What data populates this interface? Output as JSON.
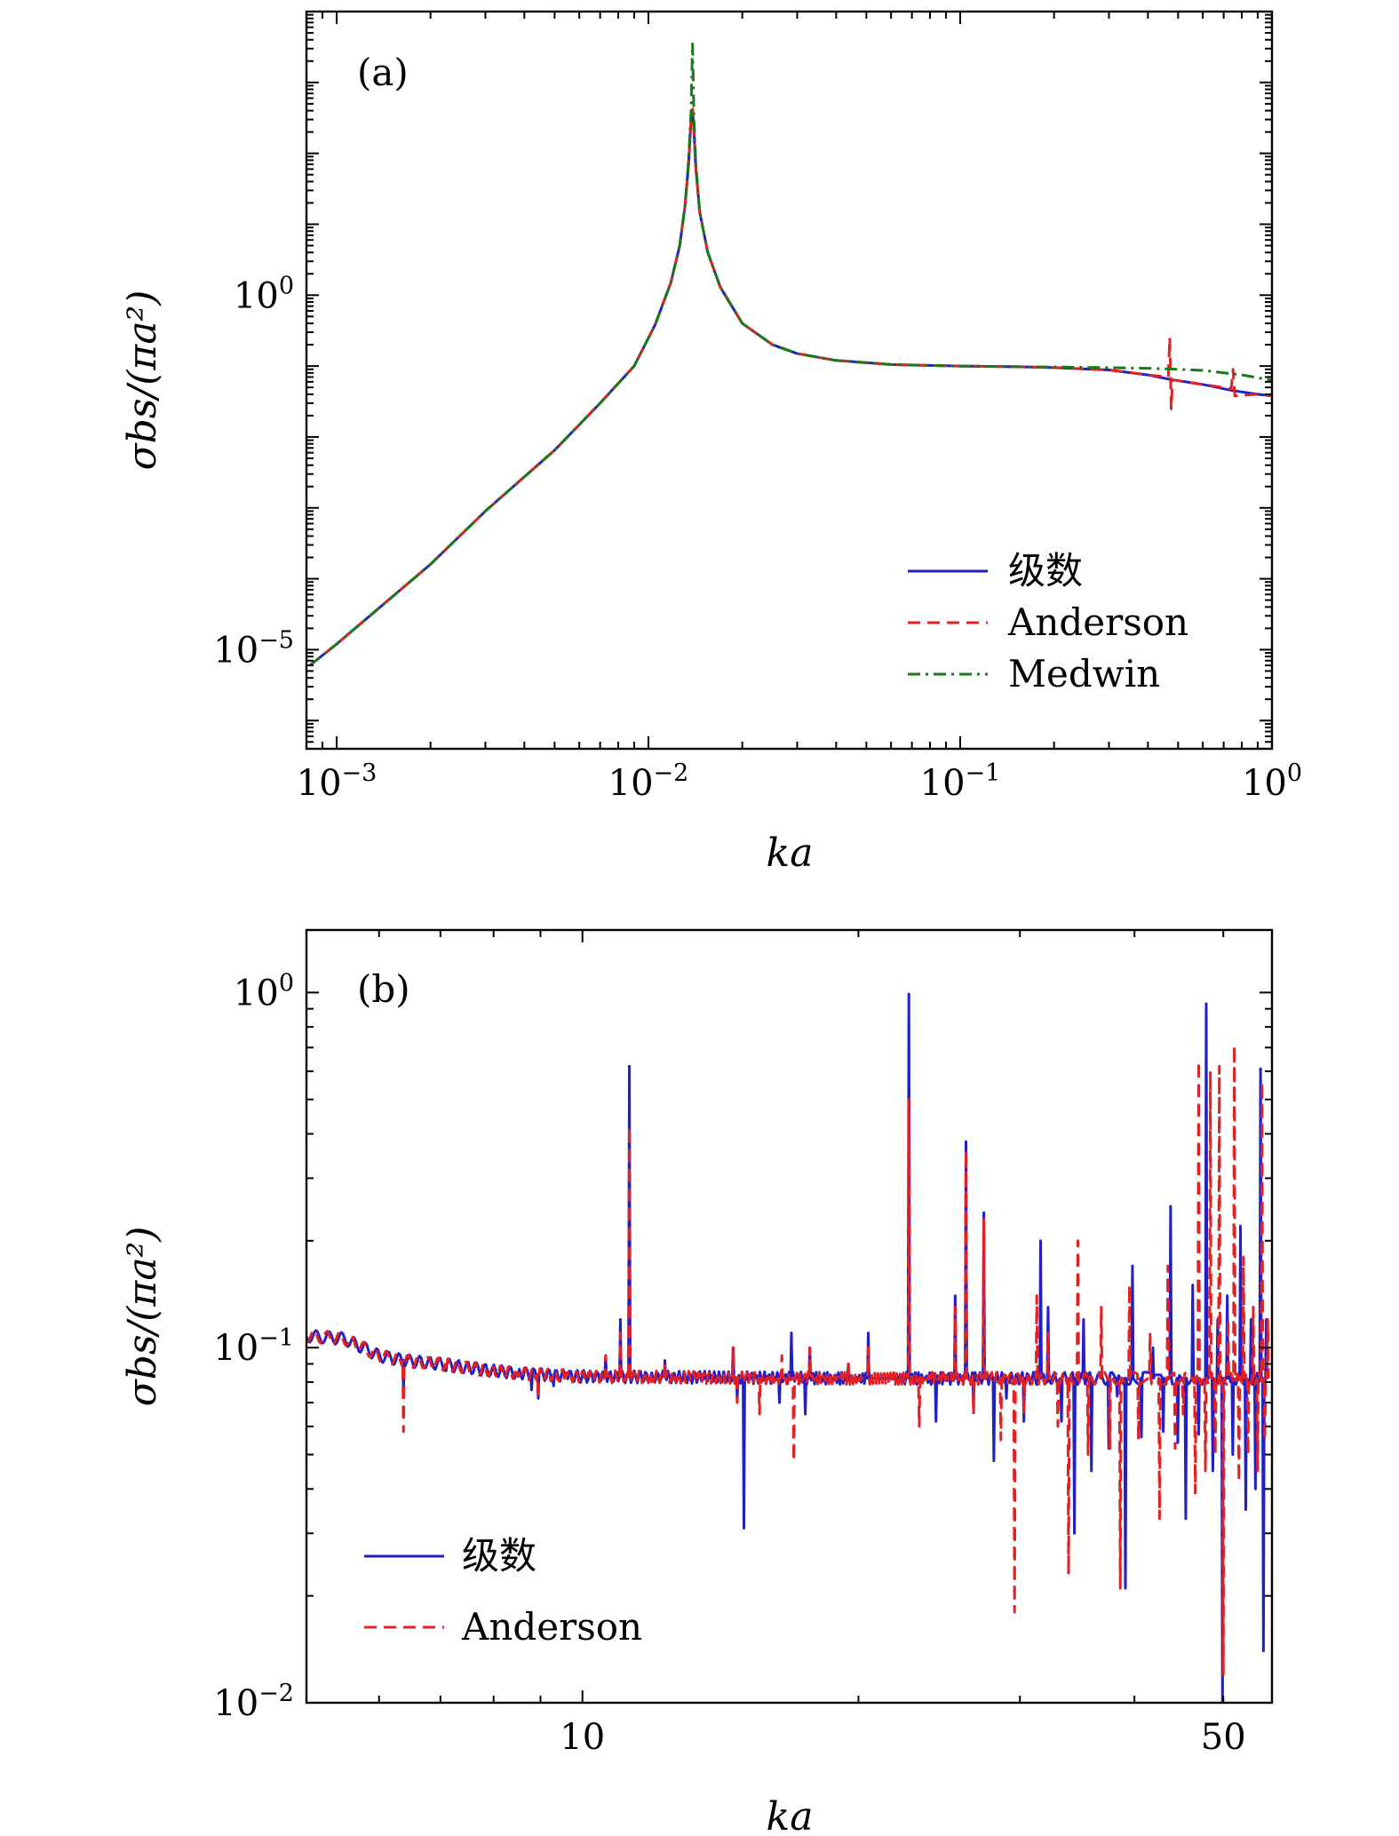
{
  "figure": {
    "background": "#ffffff"
  },
  "chart_data": [
    {
      "id": "a",
      "type": "line",
      "panel_label": "(a)",
      "xscale": "log",
      "yscale": "log",
      "xlim": [
        0.0008,
        1.0
      ],
      "ylim": [
        4e-07,
        10000
      ],
      "xlabel": "ka",
      "ylabel": "σbs/(πa²)",
      "xticks": [
        {
          "value": 0.001,
          "base": "10",
          "exp": "−3"
        },
        {
          "value": 0.01,
          "base": "10",
          "exp": "−2"
        },
        {
          "value": 0.1,
          "base": "10",
          "exp": "−1"
        },
        {
          "value": 1,
          "base": "10",
          "exp": "0"
        }
      ],
      "yticks": [
        {
          "value": 1e-05,
          "base": "10",
          "exp": "−5"
        },
        {
          "value": 1,
          "base": "10",
          "exp": "0"
        }
      ],
      "legend_position": "bottom-right",
      "series": [
        {
          "name": "级数",
          "color": "#1f1fcc",
          "style": "solid",
          "x": [
            0.00082,
            0.001,
            0.002,
            0.003,
            0.005,
            0.007,
            0.009,
            0.0105,
            0.0118,
            0.0126,
            0.0131,
            0.01345,
            0.0137,
            0.01385,
            0.014,
            0.0142,
            0.0146,
            0.0155,
            0.017,
            0.02,
            0.025,
            0.03,
            0.04,
            0.06,
            0.1,
            0.15,
            0.2,
            0.3,
            0.4,
            0.47,
            0.6,
            0.75,
            0.9,
            1.0
          ],
          "y": [
            6e-06,
            1.2e-05,
            0.00016,
            0.0009,
            0.0065,
            0.03,
            0.1,
            0.38,
            1.5,
            5,
            18,
            70,
            300,
            420,
            200,
            60,
            15,
            4,
            1.3,
            0.4,
            0.2,
            0.15,
            0.12,
            0.105,
            0.1,
            0.098,
            0.095,
            0.088,
            0.075,
            0.065,
            0.055,
            0.045,
            0.04,
            0.038
          ]
        },
        {
          "name": "Anderson",
          "color": "#e62020",
          "style": "dashed",
          "x": [
            0.00082,
            0.001,
            0.002,
            0.003,
            0.005,
            0.007,
            0.009,
            0.0105,
            0.0118,
            0.0126,
            0.0131,
            0.01345,
            0.0137,
            0.01385,
            0.014,
            0.0142,
            0.0146,
            0.0155,
            0.017,
            0.02,
            0.025,
            0.03,
            0.04,
            0.06,
            0.1,
            0.15,
            0.2,
            0.3,
            0.4,
            0.465,
            0.47,
            0.475,
            0.48,
            0.6,
            0.74,
            0.75,
            0.76,
            0.9,
            1.0
          ],
          "y": [
            6e-06,
            1.2e-05,
            0.00016,
            0.0009,
            0.0065,
            0.03,
            0.1,
            0.38,
            1.5,
            5,
            18,
            70,
            300,
            420,
            200,
            60,
            15,
            4,
            1.3,
            0.4,
            0.2,
            0.15,
            0.12,
            0.105,
            0.1,
            0.098,
            0.095,
            0.088,
            0.075,
            0.07,
            0.25,
            0.025,
            0.064,
            0.055,
            0.048,
            0.09,
            0.038,
            0.04,
            0.038
          ]
        },
        {
          "name": "Medwin",
          "color": "#1a7a1a",
          "style": "dashdot",
          "x": [
            0.00082,
            0.001,
            0.002,
            0.003,
            0.005,
            0.007,
            0.009,
            0.0105,
            0.0118,
            0.0126,
            0.0131,
            0.01345,
            0.0137,
            0.0138,
            0.01385,
            0.0139,
            0.014,
            0.0142,
            0.0146,
            0.0155,
            0.017,
            0.02,
            0.025,
            0.03,
            0.04,
            0.06,
            0.1,
            0.15,
            0.2,
            0.3,
            0.4,
            0.5,
            0.6,
            0.8,
            1.0
          ],
          "y": [
            6e-06,
            1.2e-05,
            0.00016,
            0.0009,
            0.0065,
            0.03,
            0.1,
            0.38,
            1.5,
            5,
            18,
            80,
            400,
            1800,
            3500,
            1500,
            300,
            70,
            15,
            4,
            1.3,
            0.4,
            0.2,
            0.15,
            0.12,
            0.105,
            0.1,
            0.098,
            0.097,
            0.095,
            0.093,
            0.09,
            0.087,
            0.075,
            0.063
          ]
        }
      ]
    },
    {
      "id": "b",
      "type": "line",
      "panel_label": "(b)",
      "xscale": "log",
      "yscale": "log",
      "xlim": [
        5.0,
        56.5
      ],
      "ylim": [
        0.01,
        1.5
      ],
      "xlabel": "ka",
      "ylabel": "σbs/(πa²)",
      "xticks": [
        {
          "value": 10,
          "label": "10"
        },
        {
          "value": 50,
          "label": "50"
        }
      ],
      "x_minor_ticks": [
        6,
        7,
        8,
        9,
        20,
        30,
        40
      ],
      "yticks": [
        {
          "value": 0.01,
          "base": "10",
          "exp": "−2"
        },
        {
          "value": 0.1,
          "base": "10",
          "exp": "−1"
        },
        {
          "value": 1,
          "base": "10",
          "exp": "0"
        }
      ],
      "legend_position": "bottom-left",
      "baseline": [
        [
          5.0,
          0.108
        ],
        [
          5.5,
          0.106
        ],
        [
          6.0,
          0.095
        ],
        [
          6.4,
          0.092
        ],
        [
          7.0,
          0.09
        ],
        [
          8.0,
          0.086
        ],
        [
          9.0,
          0.084
        ],
        [
          10.0,
          0.083
        ],
        [
          20.0,
          0.082
        ],
        [
          56.0,
          0.082
        ]
      ],
      "series": [
        {
          "name": "级数",
          "color": "#1f1fcc",
          "style": "solid",
          "spikes": [
            [
              6.38,
              0.076
            ],
            [
              7.1,
              0.086
            ],
            [
              8.5,
              0.083
            ],
            [
              8.8,
              0.076
            ],
            [
              8.95,
              0.072
            ],
            [
              9.3,
              0.078
            ],
            [
              9.6,
              0.085
            ],
            [
              10.6,
              0.095
            ],
            [
              11.0,
              0.12
            ],
            [
              11.25,
              0.62
            ],
            [
              11.9,
              0.085
            ],
            [
              12.3,
              0.092
            ],
            [
              14.6,
              0.1
            ],
            [
              14.75,
              0.072
            ],
            [
              15.0,
              0.031
            ],
            [
              16.4,
              0.07
            ],
            [
              16.9,
              0.11
            ],
            [
              17.5,
              0.065
            ],
            [
              17.7,
              0.1
            ],
            [
              19.5,
              0.09
            ],
            [
              20.5,
              0.11
            ],
            [
              22.7,
              0.99
            ],
            [
              24.3,
              0.062
            ],
            [
              25.5,
              0.14
            ],
            [
              26.2,
              0.38
            ],
            [
              26.7,
              0.07
            ],
            [
              27.4,
              0.24
            ],
            [
              28.1,
              0.048
            ],
            [
              29.0,
              0.072
            ],
            [
              30.3,
              0.062
            ],
            [
              31.6,
              0.2
            ],
            [
              32.2,
              0.13
            ],
            [
              33.3,
              0.062
            ],
            [
              34.4,
              0.03
            ],
            [
              35.2,
              0.12
            ],
            [
              35.9,
              0.045
            ],
            [
              37.5,
              0.052
            ],
            [
              38.3,
              0.073
            ],
            [
              39.1,
              0.021
            ],
            [
              39.8,
              0.17
            ],
            [
              40.7,
              0.056
            ],
            [
              41.9,
              0.1
            ],
            [
              43.0,
              0.058
            ],
            [
              43.8,
              0.25
            ],
            [
              44.6,
              0.054
            ],
            [
              45.5,
              0.033
            ],
            [
              46.3,
              0.15
            ],
            [
              47.0,
              0.057
            ],
            [
              47.9,
              0.93
            ],
            [
              48.7,
              0.045
            ],
            [
              49.3,
              0.12
            ],
            [
              49.9,
              0.0094
            ],
            [
              50.5,
              0.14
            ],
            [
              51.2,
              0.05
            ],
            [
              52.2,
              0.22
            ],
            [
              52.9,
              0.035
            ],
            [
              53.6,
              0.12
            ],
            [
              54.2,
              0.04
            ],
            [
              54.9,
              0.61
            ],
            [
              55.3,
              0.014
            ],
            [
              55.7,
              0.12
            ]
          ]
        },
        {
          "name": "Anderson",
          "color": "#e62020",
          "style": "dashed",
          "spikes": [
            [
              6.38,
              0.058
            ],
            [
              7.1,
              0.086
            ],
            [
              8.5,
              0.083
            ],
            [
              8.95,
              0.072
            ],
            [
              9.6,
              0.085
            ],
            [
              10.6,
              0.095
            ],
            [
              11.0,
              0.11
            ],
            [
              11.25,
              0.42
            ],
            [
              11.9,
              0.08
            ],
            [
              12.3,
              0.09
            ],
            [
              14.6,
              0.1
            ],
            [
              14.75,
              0.07
            ],
            [
              15.6,
              0.065
            ],
            [
              16.5,
              0.095
            ],
            [
              17.0,
              0.048
            ],
            [
              17.7,
              0.1
            ],
            [
              19.5,
              0.09
            ],
            [
              20.5,
              0.1
            ],
            [
              22.7,
              0.5
            ],
            [
              23.3,
              0.06
            ],
            [
              25.5,
              0.13
            ],
            [
              26.2,
              0.36
            ],
            [
              26.7,
              0.065
            ],
            [
              27.4,
              0.23
            ],
            [
              28.6,
              0.055
            ],
            [
              29.6,
              0.018
            ],
            [
              30.3,
              0.065
            ],
            [
              31.3,
              0.14
            ],
            [
              32.2,
              0.11
            ],
            [
              33.0,
              0.06
            ],
            [
              33.9,
              0.023
            ],
            [
              34.7,
              0.2
            ],
            [
              35.6,
              0.05
            ],
            [
              36.8,
              0.13
            ],
            [
              37.6,
              0.052
            ],
            [
              38.6,
              0.021
            ],
            [
              39.5,
              0.15
            ],
            [
              40.4,
              0.055
            ],
            [
              41.6,
              0.11
            ],
            [
              42.6,
              0.033
            ],
            [
              43.5,
              0.17
            ],
            [
              44.3,
              0.052
            ],
            [
              45.2,
              0.065
            ],
            [
              46.6,
              0.039
            ],
            [
              47.0,
              0.64
            ],
            [
              47.8,
              0.045
            ],
            [
              48.4,
              0.6
            ],
            [
              49.0,
              0.05
            ],
            [
              49.5,
              0.62
            ],
            [
              50.0,
              0.012
            ],
            [
              50.6,
              0.12
            ],
            [
              51.4,
              0.71
            ],
            [
              52.0,
              0.042
            ],
            [
              52.6,
              0.18
            ],
            [
              53.2,
              0.05
            ],
            [
              53.9,
              0.13
            ],
            [
              54.5,
              0.045
            ],
            [
              55.1,
              0.56
            ],
            [
              55.5,
              0.055
            ],
            [
              55.9,
              0.12
            ]
          ]
        }
      ]
    }
  ]
}
